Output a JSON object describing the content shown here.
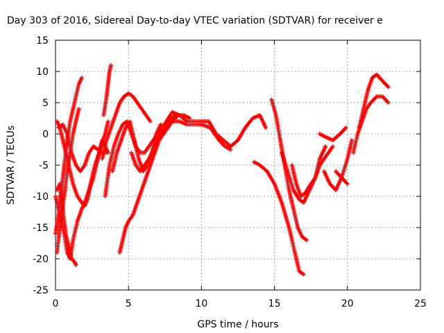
{
  "chart_data": {
    "type": "scatter",
    "title": "Day 303 of 2016, Sidereal Day-to-day VTEC variation (SDTVAR) for receiver e",
    "xlabel": "GPS time / hours",
    "ylabel": "SDTVAR / TECUs",
    "xlim": [
      0,
      25
    ],
    "ylim": [
      -25,
      15
    ],
    "xticks": [
      "0",
      "5",
      "10",
      "15",
      "20",
      "25"
    ],
    "yticks": [
      "15",
      "10",
      "5",
      "0",
      "-5",
      "-10",
      "-15",
      "-20",
      "-25"
    ],
    "grid": true,
    "legend": "none",
    "marker": "+",
    "color": "#ff0000",
    "series": [
      {
        "points": [
          [
            0.0,
            -10
          ],
          [
            0.3,
            -13
          ],
          [
            0.6,
            -16
          ],
          [
            0.8,
            -19
          ],
          [
            1.0,
            -20
          ],
          [
            1.2,
            -17
          ],
          [
            1.5,
            -14
          ],
          [
            1.8,
            -12
          ],
          [
            2.0,
            -11
          ],
          [
            2.3,
            -9
          ],
          [
            2.6,
            -7
          ],
          [
            2.9,
            -4
          ],
          [
            3.1,
            -2
          ],
          [
            3.4,
            0
          ],
          [
            3.6,
            2
          ]
        ]
      },
      {
        "points": [
          [
            0.1,
            -19
          ],
          [
            0.3,
            -15
          ],
          [
            0.6,
            -10
          ],
          [
            0.8,
            -6
          ],
          [
            1.0,
            -3
          ],
          [
            1.2,
            0
          ],
          [
            1.4,
            2
          ],
          [
            1.6,
            4
          ]
        ]
      },
      {
        "points": [
          [
            0.0,
            -16
          ],
          [
            0.2,
            -13
          ],
          [
            0.4,
            -9
          ],
          [
            0.6,
            -5
          ],
          [
            0.8,
            -1
          ],
          [
            1.0,
            2
          ],
          [
            1.3,
            5
          ],
          [
            1.6,
            8
          ],
          [
            1.8,
            9
          ]
        ]
      },
      {
        "points": [
          [
            0.1,
            -9
          ],
          [
            0.3,
            -8
          ],
          [
            0.5,
            -12
          ],
          [
            0.7,
            -16
          ],
          [
            0.9,
            -18
          ],
          [
            1.1,
            -20
          ],
          [
            1.3,
            -20.5
          ],
          [
            1.4,
            -21
          ]
        ]
      },
      {
        "points": [
          [
            0.1,
            2
          ],
          [
            0.3,
            1
          ],
          [
            0.6,
            -2
          ],
          [
            0.9,
            -5
          ],
          [
            1.2,
            -8
          ],
          [
            1.5,
            -10
          ],
          [
            1.8,
            -11
          ],
          [
            2.0,
            -11.5
          ],
          [
            2.2,
            -10.5
          ],
          [
            2.4,
            -8
          ],
          [
            2.7,
            -5
          ],
          [
            3.0,
            -3
          ],
          [
            3.2,
            -1
          ],
          [
            3.4,
            -2
          ],
          [
            3.6,
            -3
          ]
        ]
      },
      {
        "points": [
          [
            0.2,
            1
          ],
          [
            0.5,
            1.5
          ],
          [
            0.8,
            0
          ],
          [
            1.1,
            -3
          ],
          [
            1.4,
            -5
          ],
          [
            1.7,
            -6
          ],
          [
            2.0,
            -5
          ],
          [
            2.3,
            -3
          ],
          [
            2.6,
            -2
          ],
          [
            2.9,
            -2.5
          ],
          [
            3.2,
            -3
          ],
          [
            3.5,
            -3
          ]
        ]
      },
      {
        "points": [
          [
            3.2,
            -4
          ],
          [
            3.5,
            -1
          ],
          [
            3.8,
            1
          ],
          [
            4.1,
            3
          ],
          [
            4.4,
            5
          ],
          [
            4.7,
            6
          ],
          [
            5.0,
            6.5
          ],
          [
            5.3,
            6
          ],
          [
            5.6,
            5
          ],
          [
            5.9,
            4
          ],
          [
            6.2,
            3
          ],
          [
            6.5,
            2
          ]
        ]
      },
      {
        "points": [
          [
            3.3,
            3
          ],
          [
            3.5,
            6
          ],
          [
            3.6,
            8
          ],
          [
            3.7,
            10
          ],
          [
            3.8,
            11
          ]
        ]
      },
      {
        "points": [
          [
            3.4,
            -10
          ],
          [
            3.7,
            -5
          ],
          [
            4.0,
            -2
          ],
          [
            4.3,
            0
          ],
          [
            4.6,
            1.5
          ],
          [
            4.9,
            2
          ],
          [
            5.2,
            0
          ],
          [
            5.5,
            -2
          ],
          [
            5.8,
            -3
          ],
          [
            6.1,
            -3
          ],
          [
            6.4,
            -2
          ],
          [
            6.7,
            -1
          ],
          [
            7.0,
            0
          ],
          [
            7.3,
            1
          ],
          [
            7.6,
            2
          ],
          [
            8.0,
            3.5
          ],
          [
            8.5,
            3
          ],
          [
            9.0,
            2
          ],
          [
            9.5,
            2
          ],
          [
            10.0,
            2
          ],
          [
            10.5,
            2
          ],
          [
            11.0,
            0
          ],
          [
            11.5,
            -1
          ],
          [
            12.0,
            -2
          ],
          [
            12.5,
            -1
          ],
          [
            13.0,
            1
          ],
          [
            13.5,
            2.5
          ],
          [
            14.0,
            3
          ],
          [
            14.4,
            1
          ]
        ]
      },
      {
        "points": [
          [
            3.9,
            -6
          ],
          [
            4.2,
            -3
          ],
          [
            4.5,
            -1
          ],
          [
            4.8,
            1
          ],
          [
            5.1,
            2
          ],
          [
            5.4,
            -1
          ],
          [
            5.7,
            -4
          ],
          [
            6.0,
            -6
          ],
          [
            6.3,
            -5
          ],
          [
            6.6,
            -3
          ],
          [
            6.9,
            0
          ],
          [
            7.2,
            1.5
          ],
          [
            7.5,
            1
          ],
          [
            7.8,
            2
          ],
          [
            8.2,
            3
          ]
        ]
      },
      {
        "points": [
          [
            4.4,
            -19
          ],
          [
            4.6,
            -17
          ],
          [
            4.8,
            -15
          ],
          [
            5.0,
            -14
          ],
          [
            5.3,
            -13
          ],
          [
            5.6,
            -11
          ],
          [
            5.9,
            -9
          ],
          [
            6.2,
            -7
          ],
          [
            6.5,
            -5
          ],
          [
            6.8,
            -3
          ],
          [
            7.1,
            -1
          ],
          [
            7.4,
            0
          ],
          [
            7.7,
            1
          ],
          [
            8.0,
            2
          ],
          [
            8.4,
            3
          ],
          [
            8.8,
            3
          ],
          [
            9.2,
            2.5
          ]
        ]
      },
      {
        "points": [
          [
            5.2,
            -3
          ],
          [
            5.5,
            -5
          ],
          [
            5.8,
            -6
          ],
          [
            6.1,
            -5
          ],
          [
            6.4,
            -4
          ],
          [
            6.8,
            -2
          ],
          [
            7.2,
            0
          ],
          [
            7.6,
            1
          ],
          [
            8.0,
            2
          ],
          [
            8.5,
            2
          ],
          [
            9.0,
            1.5
          ],
          [
            9.5,
            1.5
          ],
          [
            10.0,
            1.5
          ],
          [
            10.6,
            1
          ],
          [
            11.2,
            -1
          ],
          [
            11.6,
            -2
          ],
          [
            12.0,
            -2.5
          ]
        ]
      },
      {
        "points": [
          [
            13.6,
            -4.5
          ],
          [
            14.0,
            -5
          ],
          [
            14.5,
            -6
          ],
          [
            15.0,
            -8
          ],
          [
            15.5,
            -11
          ],
          [
            16.0,
            -15
          ],
          [
            16.4,
            -19
          ],
          [
            16.7,
            -22
          ],
          [
            17.0,
            -22.5
          ]
        ]
      },
      {
        "points": [
          [
            14.8,
            5.5
          ],
          [
            15.1,
            3
          ],
          [
            15.4,
            -1
          ],
          [
            15.7,
            -5
          ],
          [
            16.0,
            -9
          ],
          [
            16.3,
            -12
          ],
          [
            16.6,
            -15
          ],
          [
            16.9,
            -16.5
          ],
          [
            17.2,
            -17
          ]
        ]
      },
      {
        "points": [
          [
            15.5,
            -3
          ],
          [
            15.9,
            -6
          ],
          [
            16.3,
            -9
          ],
          [
            16.7,
            -10.5
          ],
          [
            17.0,
            -11
          ],
          [
            17.4,
            -9
          ],
          [
            17.8,
            -7
          ],
          [
            18.1,
            -4
          ],
          [
            18.5,
            -2
          ]
        ]
      },
      {
        "points": [
          [
            16.2,
            -5
          ],
          [
            16.5,
            -8
          ],
          [
            16.8,
            -10
          ],
          [
            17.1,
            -9.5
          ],
          [
            17.5,
            -8
          ],
          [
            17.8,
            -7
          ],
          [
            18.1,
            -5
          ],
          [
            18.4,
            -4
          ],
          [
            18.7,
            -3
          ],
          [
            19.0,
            -2
          ]
        ]
      },
      {
        "points": [
          [
            18.4,
            -6
          ],
          [
            18.8,
            -8
          ],
          [
            19.2,
            -9
          ],
          [
            19.6,
            -7
          ],
          [
            20.0,
            -4
          ],
          [
            20.3,
            -1
          ]
        ]
      },
      {
        "points": [
          [
            18.1,
            0
          ],
          [
            18.5,
            -0.5
          ],
          [
            19.0,
            -1
          ],
          [
            19.5,
            0
          ],
          [
            19.9,
            1
          ]
        ]
      },
      {
        "points": [
          [
            19.2,
            -6
          ],
          [
            19.6,
            -7
          ],
          [
            20.0,
            -8
          ]
        ]
      },
      {
        "points": [
          [
            20.4,
            -3
          ],
          [
            20.7,
            0
          ],
          [
            21.0,
            2
          ],
          [
            21.3,
            4
          ],
          [
            21.6,
            5
          ],
          [
            22.0,
            6
          ],
          [
            22.4,
            6
          ],
          [
            22.8,
            5
          ]
        ]
      },
      {
        "points": [
          [
            20.8,
            1
          ],
          [
            21.1,
            4
          ],
          [
            21.4,
            7
          ],
          [
            21.7,
            9
          ],
          [
            22.0,
            9.5
          ],
          [
            22.4,
            8.5
          ],
          [
            22.8,
            7.5
          ]
        ]
      }
    ]
  }
}
